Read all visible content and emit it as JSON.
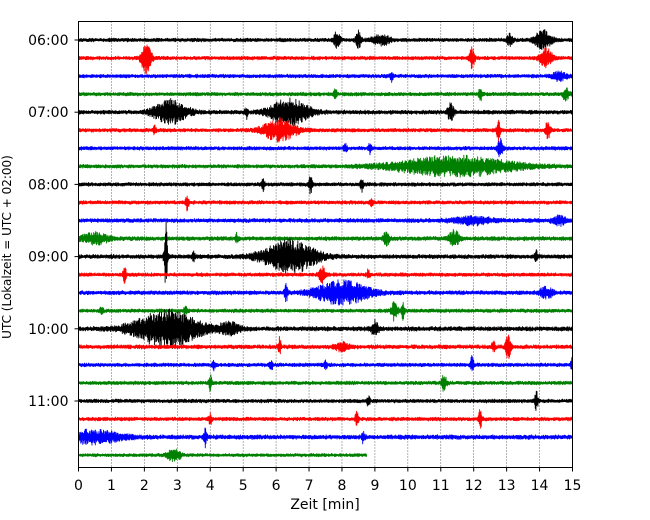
{
  "chart_data": {
    "type": "line",
    "title": "",
    "xlabel": "Zeit  [min]",
    "ylabel": "UTC (Lokalzeit = UTC + 02:00)",
    "xlim": [
      0,
      15
    ],
    "x_ticks": [
      "0",
      "1",
      "2",
      "3",
      "4",
      "5",
      "6",
      "7",
      "8",
      "9",
      "10",
      "11",
      "12",
      "13",
      "14",
      "15"
    ],
    "y_ticks": [
      "06:00",
      "07:00",
      "08:00",
      "09:00",
      "10:00",
      "11:00"
    ],
    "y_tick_rows": [
      0,
      4,
      8,
      12,
      16,
      20
    ],
    "grid": "vertical dotted",
    "row_interval_min": 15,
    "colors": [
      "#000000",
      "#ff0000",
      "#0000ff",
      "#008000"
    ],
    "traces": [
      {
        "start": "06:00",
        "color": "#000000",
        "end_min": 15,
        "noise": 0.18,
        "events": [
          {
            "t": 7.85,
            "amp": 0.9,
            "dur": 0.1
          },
          {
            "t": 8.5,
            "amp": 1.0,
            "dur": 0.08
          },
          {
            "t": 9.2,
            "amp": 0.5,
            "dur": 0.3
          },
          {
            "t": 13.1,
            "amp": 0.6,
            "dur": 0.1
          },
          {
            "t": 14.1,
            "amp": 1.0,
            "dur": 0.25
          }
        ]
      },
      {
        "start": "06:15",
        "color": "#ff0000",
        "end_min": 15,
        "noise": 0.18,
        "events": [
          {
            "t": 2.05,
            "amp": 1.7,
            "dur": 0.15
          },
          {
            "t": 11.95,
            "amp": 1.1,
            "dur": 0.08
          },
          {
            "t": 14.2,
            "amp": 1.0,
            "dur": 0.2
          }
        ]
      },
      {
        "start": "06:30",
        "color": "#0000ff",
        "end_min": 15,
        "noise": 0.18,
        "events": [
          {
            "t": 9.5,
            "amp": 0.6,
            "dur": 0.05
          },
          {
            "t": 14.6,
            "amp": 0.5,
            "dur": 0.2
          }
        ]
      },
      {
        "start": "06:45",
        "color": "#008000",
        "end_min": 15,
        "noise": 0.18,
        "events": [
          {
            "t": 7.8,
            "amp": 0.6,
            "dur": 0.05
          },
          {
            "t": 12.2,
            "amp": 0.8,
            "dur": 0.05
          },
          {
            "t": 14.8,
            "amp": 0.7,
            "dur": 0.1
          }
        ]
      },
      {
        "start": "07:00",
        "color": "#000000",
        "end_min": 15,
        "noise": 0.2,
        "events": [
          {
            "t": 2.8,
            "amp": 1.3,
            "dur": 0.5
          },
          {
            "t": 5.1,
            "amp": 0.6,
            "dur": 0.05
          },
          {
            "t": 6.4,
            "amp": 1.4,
            "dur": 0.6
          },
          {
            "t": 11.3,
            "amp": 1.0,
            "dur": 0.1
          }
        ]
      },
      {
        "start": "07:15",
        "color": "#ff0000",
        "end_min": 15,
        "noise": 0.18,
        "events": [
          {
            "t": 2.3,
            "amp": 0.5,
            "dur": 0.05
          },
          {
            "t": 6.1,
            "amp": 1.2,
            "dur": 0.5
          },
          {
            "t": 12.75,
            "amp": 1.2,
            "dur": 0.05
          },
          {
            "t": 14.25,
            "amp": 0.9,
            "dur": 0.08
          }
        ]
      },
      {
        "start": "07:30",
        "color": "#0000ff",
        "end_min": 15,
        "noise": 0.18,
        "events": [
          {
            "t": 8.1,
            "amp": 0.5,
            "dur": 0.05
          },
          {
            "t": 8.85,
            "amp": 0.6,
            "dur": 0.05
          },
          {
            "t": 12.8,
            "amp": 1.0,
            "dur": 0.08
          }
        ]
      },
      {
        "start": "07:45",
        "color": "#008000",
        "end_min": 15,
        "noise": 0.18,
        "events": [
          {
            "t": 11.4,
            "amp": 1.1,
            "dur": 1.8
          }
        ]
      },
      {
        "start": "08:00",
        "color": "#000000",
        "end_min": 15,
        "noise": 0.18,
        "events": [
          {
            "t": 5.6,
            "amp": 0.7,
            "dur": 0.05
          },
          {
            "t": 7.05,
            "amp": 1.1,
            "dur": 0.05
          },
          {
            "t": 8.6,
            "amp": 0.8,
            "dur": 0.05
          }
        ]
      },
      {
        "start": "08:15",
        "color": "#ff0000",
        "end_min": 15,
        "noise": 0.18,
        "events": [
          {
            "t": 3.3,
            "amp": 0.8,
            "dur": 0.05
          },
          {
            "t": 8.9,
            "amp": 0.6,
            "dur": 0.05
          }
        ]
      },
      {
        "start": "08:30",
        "color": "#0000ff",
        "end_min": 15,
        "noise": 0.2,
        "events": [
          {
            "t": 12.0,
            "amp": 0.4,
            "dur": 0.6
          },
          {
            "t": 14.6,
            "amp": 0.5,
            "dur": 0.2
          }
        ]
      },
      {
        "start": "08:45",
        "color": "#008000",
        "end_min": 15,
        "noise": 0.2,
        "events": [
          {
            "t": 0.5,
            "amp": 0.6,
            "dur": 0.4
          },
          {
            "t": 4.8,
            "amp": 0.5,
            "dur": 0.05
          },
          {
            "t": 9.35,
            "amp": 0.9,
            "dur": 0.08
          },
          {
            "t": 11.4,
            "amp": 0.9,
            "dur": 0.15
          }
        ]
      },
      {
        "start": "09:00",
        "color": "#000000",
        "end_min": 15,
        "noise": 0.2,
        "events": [
          {
            "t": 2.65,
            "amp": 3.8,
            "dur": 0.05
          },
          {
            "t": 3.5,
            "amp": 0.5,
            "dur": 0.05
          },
          {
            "t": 6.4,
            "amp": 1.8,
            "dur": 0.8
          },
          {
            "t": 13.9,
            "amp": 0.6,
            "dur": 0.05
          }
        ]
      },
      {
        "start": "09:15",
        "color": "#ff0000",
        "end_min": 15,
        "noise": 0.18,
        "events": [
          {
            "t": 1.4,
            "amp": 0.9,
            "dur": 0.05
          },
          {
            "t": 7.4,
            "amp": 0.9,
            "dur": 0.1
          },
          {
            "t": 8.8,
            "amp": 0.5,
            "dur": 0.05
          }
        ]
      },
      {
        "start": "09:30",
        "color": "#0000ff",
        "end_min": 15,
        "noise": 0.2,
        "events": [
          {
            "t": 6.3,
            "amp": 1.0,
            "dur": 0.05
          },
          {
            "t": 8.0,
            "amp": 1.3,
            "dur": 0.8
          },
          {
            "t": 14.2,
            "amp": 0.6,
            "dur": 0.2
          }
        ]
      },
      {
        "start": "09:45",
        "color": "#008000",
        "end_min": 15,
        "noise": 0.18,
        "events": [
          {
            "t": 0.7,
            "amp": 0.5,
            "dur": 0.05
          },
          {
            "t": 3.25,
            "amp": 0.5,
            "dur": 0.05
          },
          {
            "t": 9.6,
            "amp": 1.1,
            "dur": 0.1
          },
          {
            "t": 9.85,
            "amp": 0.9,
            "dur": 0.05
          }
        ]
      },
      {
        "start": "10:00",
        "color": "#000000",
        "end_min": 15,
        "noise": 0.22,
        "events": [
          {
            "t": 2.7,
            "amp": 2.0,
            "dur": 1.0
          },
          {
            "t": 4.6,
            "amp": 0.6,
            "dur": 0.3
          },
          {
            "t": 9.0,
            "amp": 0.9,
            "dur": 0.1
          }
        ]
      },
      {
        "start": "10:15",
        "color": "#ff0000",
        "end_min": 15,
        "noise": 0.2,
        "events": [
          {
            "t": 6.1,
            "amp": 1.0,
            "dur": 0.05
          },
          {
            "t": 8.0,
            "amp": 0.5,
            "dur": 0.2
          },
          {
            "t": 12.6,
            "amp": 0.6,
            "dur": 0.05
          },
          {
            "t": 13.05,
            "amp": 1.3,
            "dur": 0.08
          }
        ]
      },
      {
        "start": "10:30",
        "color": "#0000ff",
        "end_min": 15,
        "noise": 0.18,
        "events": [
          {
            "t": 4.1,
            "amp": 0.5,
            "dur": 0.05
          },
          {
            "t": 5.85,
            "amp": 0.6,
            "dur": 0.05
          },
          {
            "t": 7.5,
            "amp": 0.5,
            "dur": 0.05
          },
          {
            "t": 11.95,
            "amp": 1.0,
            "dur": 0.05
          },
          {
            "t": 15.0,
            "amp": 0.8,
            "dur": 0.05
          }
        ]
      },
      {
        "start": "10:45",
        "color": "#008000",
        "end_min": 15,
        "noise": 0.18,
        "events": [
          {
            "t": 4.0,
            "amp": 0.9,
            "dur": 0.05
          },
          {
            "t": 11.1,
            "amp": 1.0,
            "dur": 0.08
          }
        ]
      },
      {
        "start": "11:00",
        "color": "#000000",
        "end_min": 15,
        "noise": 0.18,
        "events": [
          {
            "t": 8.8,
            "amp": 0.6,
            "dur": 0.05
          },
          {
            "t": 13.9,
            "amp": 1.1,
            "dur": 0.05
          }
        ]
      },
      {
        "start": "11:15",
        "color": "#ff0000",
        "end_min": 15,
        "noise": 0.18,
        "events": [
          {
            "t": 4.0,
            "amp": 0.6,
            "dur": 0.05
          },
          {
            "t": 8.45,
            "amp": 0.8,
            "dur": 0.05
          },
          {
            "t": 12.2,
            "amp": 1.1,
            "dur": 0.05
          }
        ]
      },
      {
        "start": "11:30",
        "color": "#0000ff",
        "end_min": 15,
        "noise": 0.22,
        "events": [
          {
            "t": 0.5,
            "amp": 0.7,
            "dur": 0.8
          },
          {
            "t": 3.85,
            "amp": 1.0,
            "dur": 0.05
          },
          {
            "t": 8.65,
            "amp": 0.6,
            "dur": 0.05
          }
        ]
      },
      {
        "start": "11:45",
        "color": "#008000",
        "end_min": 8.75,
        "noise": 0.16,
        "events": [
          {
            "t": 2.9,
            "amp": 0.7,
            "dur": 0.2
          }
        ]
      }
    ]
  }
}
